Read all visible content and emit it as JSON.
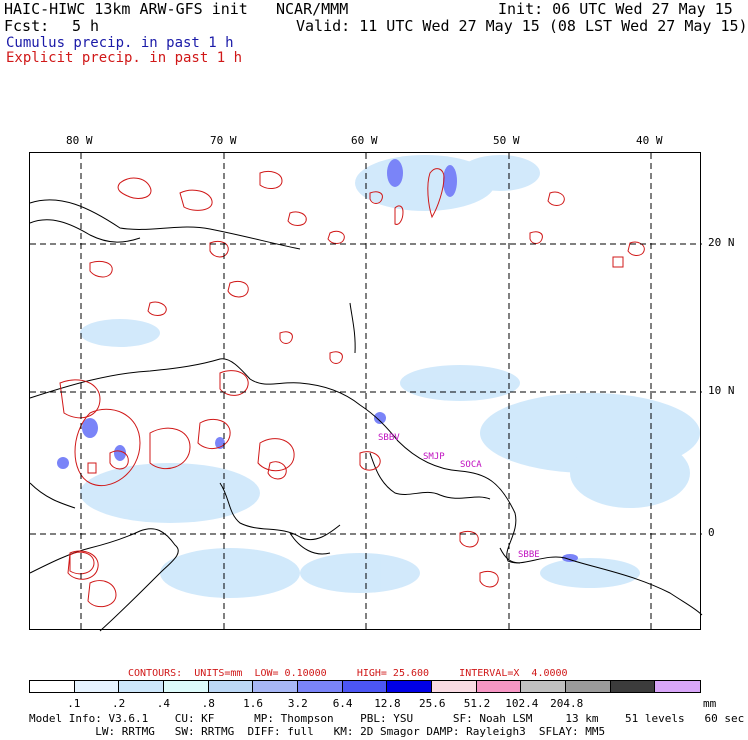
{
  "header": {
    "model": "HAIC-HIWC 13km ARW-GFS init",
    "org": "NCAR/MMM",
    "init": "Init: 06 UTC Wed 27 May 15",
    "fcst_label": "Fcst:",
    "fcst_value": "5 h",
    "valid": "Valid: 11 UTC Wed 27 May 15 (08 LST Wed 27 May 15)",
    "cumulus": "Cumulus precip. in past 1 h",
    "explicit": "Explicit precip. in past 1 h"
  },
  "map": {
    "lon_labels": [
      "80 W",
      "70 W",
      "60 W",
      "50 W",
      "40 W"
    ],
    "lat_labels": [
      "20 N",
      "10 N",
      "0"
    ],
    "stations": [
      "SBBV",
      "SMJP",
      "SOCA",
      "SBBE"
    ],
    "colors": {
      "coast": "#000000",
      "contour": "#d01818",
      "grid": "#000000",
      "station": "#c010c0"
    }
  },
  "contours": {
    "label": "CONTOURS:",
    "units": "UNITS=mm",
    "low": "LOW= 0.10000",
    "high": "HIGH= 25.600",
    "interval": "INTERVAL=X  4.0000"
  },
  "colorbar": {
    "colors": [
      "#ffffff",
      "#e6f3ff",
      "#cde7fb",
      "#ddfbfb",
      "#bcd8f6",
      "#a7b7f6",
      "#7a84f8",
      "#4c56f4",
      "#0000e6",
      "#f9dbe3",
      "#f696c4",
      "#c0c0c0",
      "#9b9b9b",
      "#3c3c3c",
      "#d8a6f8"
    ],
    "ticks": [
      ".1",
      ".2",
      ".4",
      ".8",
      "1.6",
      "3.2",
      "6.4",
      "12.8",
      "25.6",
      "51.2",
      "102.4",
      "204.8"
    ],
    "units": "mm"
  },
  "model_info": {
    "line1": "Model Info: V3.6.1    CU: KF      MP: Thompson    PBL: YSU      SF: Noah LSM     13 km    51 levels   60 sec",
    "line2": "          LW: RRTMG   SW: RRTMG  DIFF: full   KM: 2D Smagor DAMP: Rayleigh3  SFLAY: MM5"
  }
}
